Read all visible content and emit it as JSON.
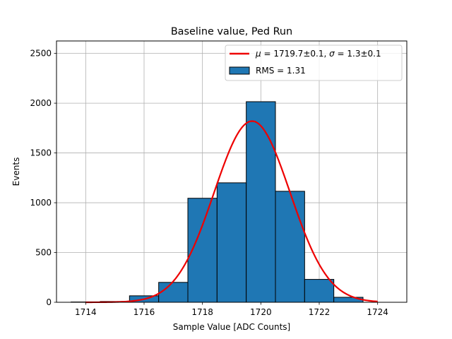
{
  "chart_data": {
    "type": "bar",
    "title": "Baseline value, Ped Run",
    "xlabel": "Sample Value [ADC Counts]",
    "ylabel": "Events",
    "xlim": [
      1713.0,
      1725.0
    ],
    "ylim": [
      0,
      2625
    ],
    "grid": true,
    "legend_position": "top-right",
    "xticks": [
      1714,
      1716,
      1718,
      1720,
      1722,
      1724
    ],
    "xtick_labels": [
      "1714",
      "1716",
      "1718",
      "1720",
      "1722",
      "1724"
    ],
    "yticks": [
      0,
      500,
      1000,
      1500,
      2000,
      2500
    ],
    "ytick_labels": [
      "0",
      "500",
      "1000",
      "1500",
      "2000",
      "2500"
    ],
    "bin_edges": [
      1713.5,
      1714.5,
      1715.5,
      1716.5,
      1717.5,
      1718.5,
      1719.5,
      1720.5,
      1721.5,
      1722.5,
      1723.5
    ],
    "values": [
      3,
      8,
      65,
      200,
      1045,
      1200,
      2015,
      1115,
      230,
      50
    ],
    "histogram_color": "#1f77b4",
    "histogram_edge_color": "#000000",
    "fit": {
      "mu": 1719.7,
      "sigma": 1.3,
      "amplitude": 1820,
      "x_range": [
        1714.0,
        1724.0
      ],
      "color": "#ee0000"
    },
    "legend": [
      {
        "name": "fit",
        "mu_text": "1719.7±0.1, ",
        "sigma_text": "1.3±0.1",
        "mu_symbol": "μ",
        "sigma_symbol": "σ",
        "equals": " = "
      },
      {
        "name": "histogram",
        "label": "RMS = 1.31"
      }
    ]
  }
}
